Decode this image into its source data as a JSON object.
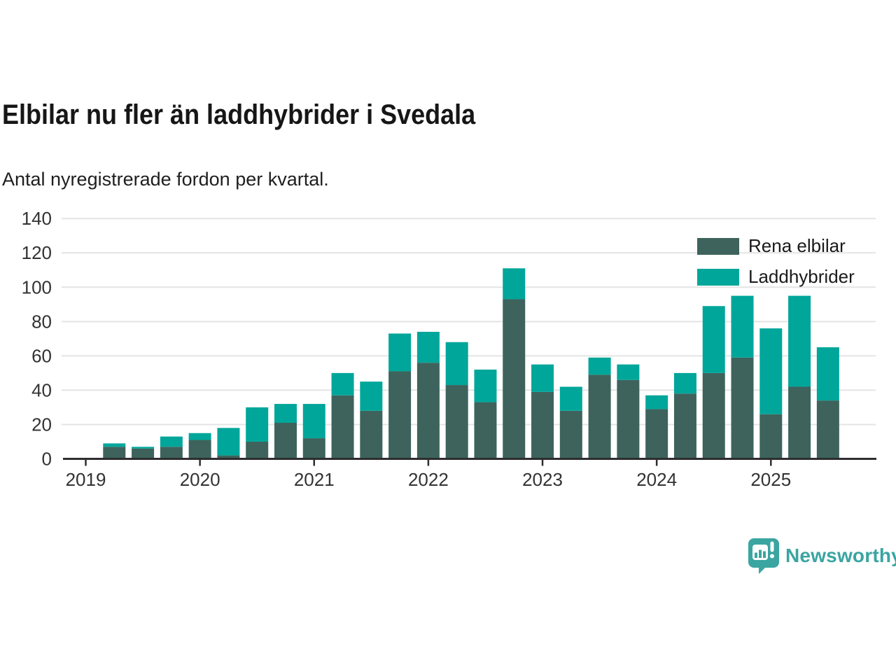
{
  "header": {
    "title": "Elbilar nu fler än laddhybrider i Svedala",
    "subtitle": "Antal nyregistrerade fordon per kvartal."
  },
  "legend": [
    {
      "label": "Rena elbilar",
      "color": "#3d635c"
    },
    {
      "label": "Laddhybrider",
      "color": "#00a69a"
    }
  ],
  "footer": {
    "brand": "Newsworthy",
    "brand_color": "#3aa5a1"
  },
  "colors": {
    "series_dark": "#3d635c",
    "series_teal": "#00a69a",
    "grid": "#e4e4e4",
    "axis": "#2e2e2e",
    "tick_text": "#333333",
    "background": "#ffffff"
  },
  "chart_data": {
    "type": "bar",
    "stacked": true,
    "title": "Elbilar nu fler än laddhybrider i Svedala",
    "subtitle": "Antal nyregistrerade fordon per kvartal.",
    "xlabel": "",
    "ylabel": "",
    "ylim": [
      0,
      140
    ],
    "y_ticks": [
      0,
      20,
      40,
      60,
      80,
      100,
      120,
      140
    ],
    "grid": "horizontal",
    "legend_position": "top-right",
    "year_labels": [
      "2019",
      "2020",
      "2021",
      "2022",
      "2023",
      "2024",
      "2025"
    ],
    "categories": [
      "2019 Q2",
      "2019 Q3",
      "2019 Q4",
      "2020 Q1",
      "2020 Q2",
      "2020 Q3",
      "2020 Q4",
      "2021 Q1",
      "2021 Q2",
      "2021 Q3",
      "2021 Q4",
      "2022 Q1",
      "2022 Q2",
      "2022 Q3",
      "2022 Q4",
      "2023 Q1",
      "2023 Q2",
      "2023 Q3",
      "2023 Q4",
      "2024 Q1",
      "2024 Q2",
      "2024 Q3",
      "2024 Q4",
      "2025 Q1",
      "2025 Q2",
      "2025 Q3"
    ],
    "series": [
      {
        "name": "Rena elbilar",
        "color": "#3d635c",
        "values": [
          7,
          6,
          7,
          11,
          2,
          10,
          21,
          12,
          37,
          28,
          51,
          56,
          43,
          33,
          93,
          39,
          28,
          49,
          46,
          29,
          38,
          50,
          59,
          26,
          42,
          34
        ]
      },
      {
        "name": "Laddhybrider",
        "color": "#00a69a",
        "values": [
          2,
          1,
          6,
          4,
          16,
          20,
          11,
          20,
          13,
          17,
          22,
          18,
          25,
          19,
          18,
          16,
          14,
          10,
          9,
          8,
          12,
          39,
          36,
          50,
          53,
          31
        ]
      }
    ]
  }
}
